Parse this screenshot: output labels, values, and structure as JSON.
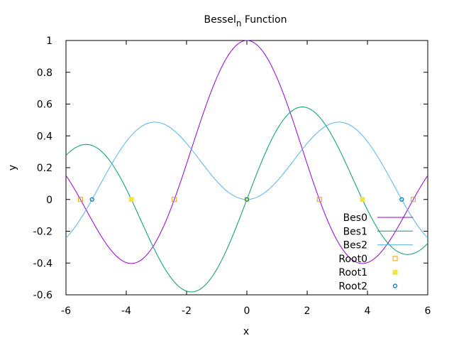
{
  "chart_data": {
    "type": "line",
    "title_main": "Bessel",
    "title_sub": "n",
    "title_rest": " Function",
    "xlabel": "x",
    "ylabel": "y",
    "xlim": [
      -6,
      6
    ],
    "ylim": [
      -0.6,
      1
    ],
    "x_ticks": [
      -6,
      -4,
      -2,
      0,
      2,
      4,
      6
    ],
    "y_ticks": [
      -0.6,
      -0.4,
      -0.2,
      0,
      0.2,
      0.4,
      0.6,
      0.8,
      1
    ],
    "x_tick_labels": [
      "-6",
      "-4",
      "-2",
      "0",
      "2",
      "4",
      "6"
    ],
    "y_tick_labels": [
      "-0.6",
      "-0.4",
      "-0.2",
      "0",
      "0.2",
      "0.4",
      "0.6",
      "0.8",
      "1"
    ],
    "grid": false,
    "legend_position": "bottom-right",
    "series": [
      {
        "name": "Bes0",
        "order": 0,
        "color": "#9400d3",
        "style": "line"
      },
      {
        "name": "Bes1",
        "order": 1,
        "color": "#009e73",
        "style": "line"
      },
      {
        "name": "Bes2",
        "order": 2,
        "color": "#56b4e9",
        "style": "line"
      },
      {
        "name": "Root0",
        "color": "#e69f00",
        "style": "open-square",
        "points": [
          [
            -5.52,
            0
          ],
          [
            -2.405,
            0
          ],
          [
            2.405,
            0
          ],
          [
            5.52,
            0
          ]
        ]
      },
      {
        "name": "Root1",
        "color": "#f0e442",
        "style": "filled-square",
        "points": [
          [
            -3.832,
            0
          ],
          [
            0,
            0
          ],
          [
            3.832,
            0
          ]
        ]
      },
      {
        "name": "Root2",
        "color": "#0072b2",
        "style": "open-circle",
        "points": [
          [
            -5.136,
            0
          ],
          [
            0,
            0
          ],
          [
            5.136,
            0
          ]
        ]
      }
    ]
  }
}
